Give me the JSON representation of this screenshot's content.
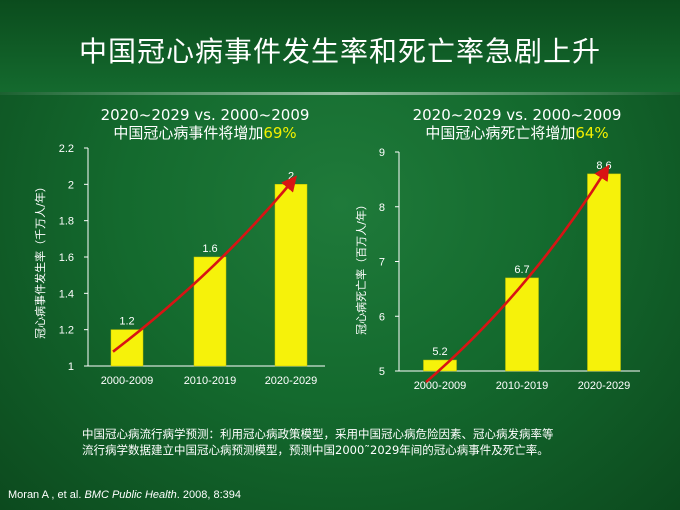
{
  "slide": {
    "title": "中国冠心病事件发生率和死亡率急剧上升",
    "note_line1": "中国冠心病流行病学预测：利用冠心病政策模型，采用中国冠心病危险因素、冠心病发病率等",
    "note_line2": "流行病学数据建立中国冠心病预测模型，预测中国2000˜2029年间的冠心病事件及死亡率。",
    "citation_authors": "Moran A , et al. ",
    "citation_journal": "BMC Public Health",
    "citation_rest": ". 2008, 8:394"
  },
  "panels": {
    "left": {
      "title_line1": "2020~2029 vs. 2000~2009",
      "title_line2_prefix": "中国冠心病事件将增加",
      "title_line2_highlight": "69%"
    },
    "right": {
      "title_line1": "2020~2029 vs. 2000~2009",
      "title_line2_prefix": "中国冠心病死亡将增加",
      "title_line2_highlight": "64%"
    }
  },
  "colors": {
    "bar": "#f6f20a",
    "bar_edge": "#c9c500",
    "trend": "#d81414",
    "axis": "#ffffff",
    "highlight": "#f3f000"
  },
  "chart_data": [
    {
      "type": "bar",
      "title": "中国冠心病事件将增加69%",
      "ylabel": "冠心病事件发生率（千万人/年）",
      "categories": [
        "2000-2009",
        "2010-2019",
        "2020-2029"
      ],
      "values": [
        1.2,
        1.6,
        2
      ],
      "data_labels": [
        "1.2",
        "1.6",
        "2"
      ],
      "ylim": [
        1,
        2.2
      ],
      "yticks": [
        "1",
        "1.2",
        "1.4",
        "1.6",
        "1.8",
        "2",
        "2.2"
      ],
      "trend_line": true,
      "grid": false
    },
    {
      "type": "bar",
      "title": "中国冠心病死亡将增加64%",
      "ylabel": "冠心病死亡率（百万人/年）",
      "categories": [
        "2000-2009",
        "2010-2019",
        "2020-2029"
      ],
      "values": [
        5.2,
        6.7,
        8.6
      ],
      "data_labels": [
        "5.2",
        "6.7",
        "8.6"
      ],
      "ylim": [
        5,
        9
      ],
      "yticks": [
        "5",
        "6",
        "7",
        "8",
        "9"
      ],
      "trend_line": true,
      "grid": false
    }
  ]
}
